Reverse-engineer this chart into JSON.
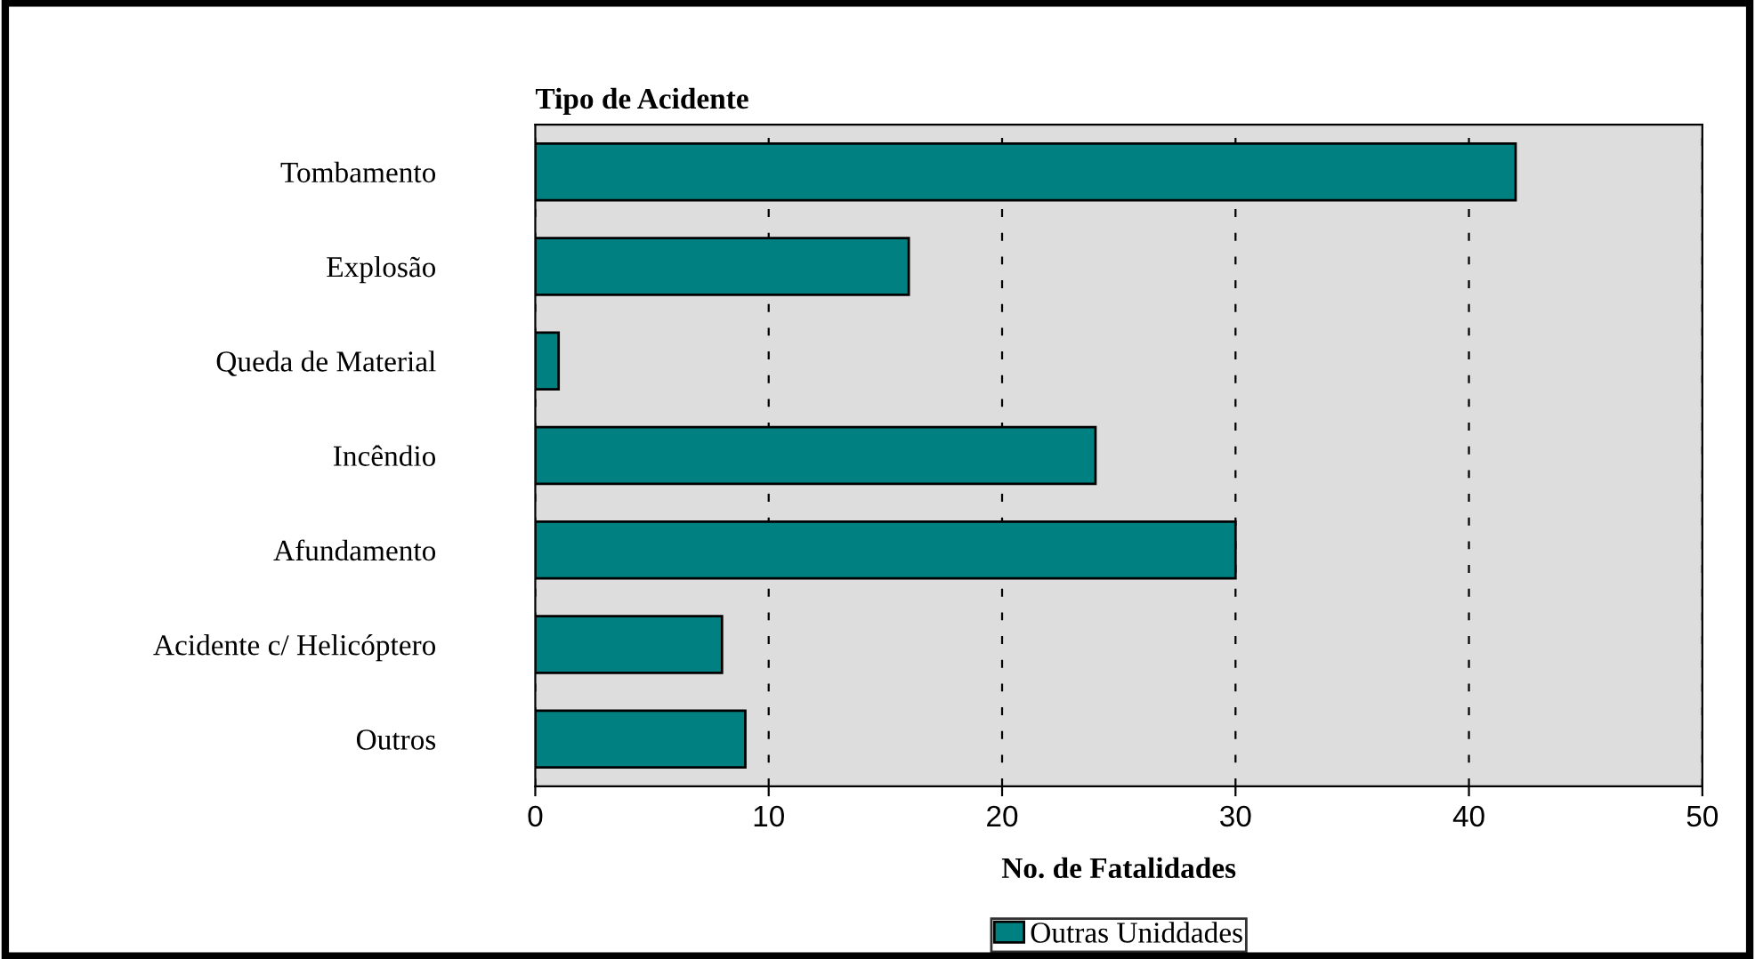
{
  "chart_data": {
    "type": "bar",
    "orientation": "horizontal",
    "ylabel": "Tipo de Acidente",
    "xlabel": "No. de Fatalidades",
    "categories": [
      "Tombamento",
      "Explosão",
      "Queda de Material",
      "Incêndio",
      "Afundamento",
      "Acidente c/ Helicóptero",
      "Outros"
    ],
    "series": [
      {
        "name": "Outras Uniddades",
        "color": "#008080",
        "values": [
          42,
          16,
          1,
          24,
          30,
          8,
          9
        ]
      }
    ],
    "xlim": [
      0,
      50
    ],
    "xticks": [
      0,
      10,
      20,
      30,
      40,
      50
    ],
    "grid": "x",
    "legend": "bottom"
  }
}
